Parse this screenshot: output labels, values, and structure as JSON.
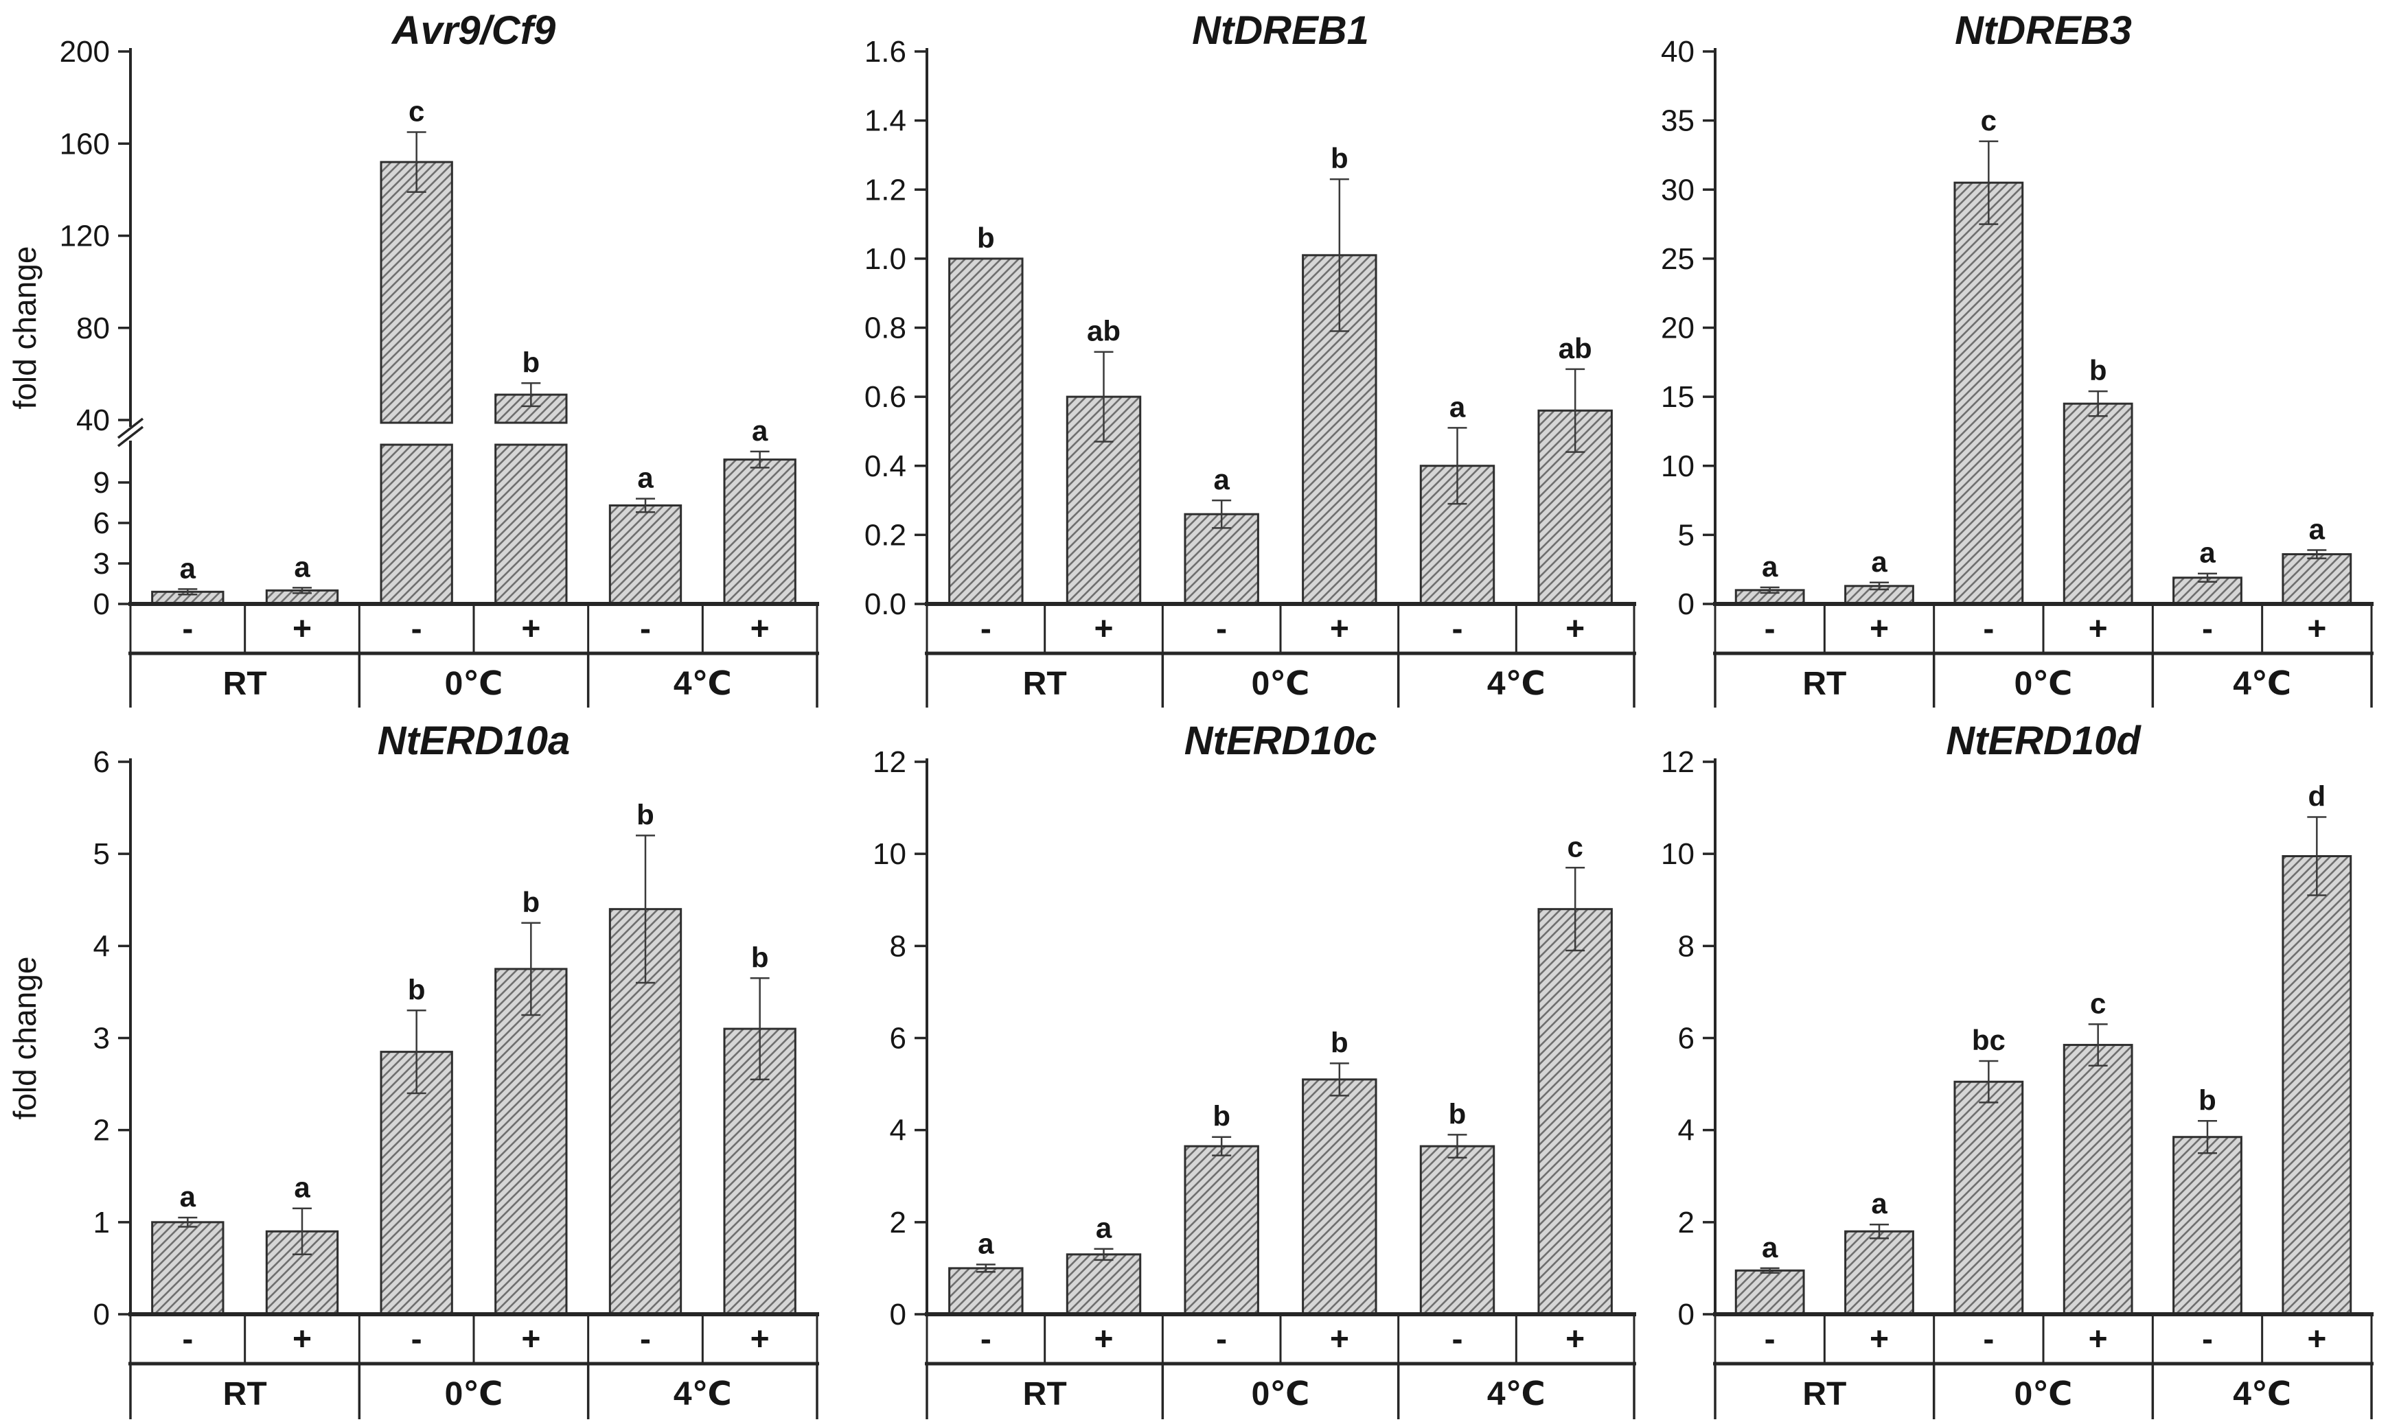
{
  "figure": {
    "background": "#ffffff",
    "bar_fill": "#d6d6d6",
    "bar_hatch_color": "#6f6f6f",
    "bar_border": "#2e2e2e",
    "axis_color": "#262626",
    "error_bar_color": "#3a3a3a",
    "text_color": "#161616"
  },
  "chart_data": [
    {
      "type": "bar",
      "title": "Avr9/Cf9",
      "ylabel": "fold change",
      "groups": [
        "RT",
        "0℃",
        "4℃"
      ],
      "conditions": [
        "-",
        "+"
      ],
      "categories": [
        "RT -",
        "RT +",
        "0℃ -",
        "0℃ +",
        "4℃ -",
        "4℃ +"
      ],
      "values": [
        0.9,
        1.0,
        152,
        51,
        7.3,
        10.7
      ],
      "errors": [
        0.2,
        0.2,
        13,
        5,
        0.5,
        0.6
      ],
      "sig_letters": [
        "a",
        "a",
        "c",
        "b",
        "a",
        "a"
      ],
      "broken_axis": true,
      "lower": {
        "max_visible": 11.8,
        "ticks": [
          0,
          3,
          6,
          9
        ],
        "tick_labels": [
          "0",
          "3",
          "6",
          "9"
        ]
      },
      "upper": {
        "min": 40,
        "max": 200,
        "ticks": [
          40,
          80,
          120,
          160,
          200
        ],
        "tick_labels": [
          "40",
          "80",
          "120",
          "160",
          "200"
        ]
      },
      "grid": "off",
      "legend": "none"
    },
    {
      "type": "bar",
      "title": "NtDREB1",
      "ylabel": "",
      "groups": [
        "RT",
        "0℃",
        "4℃"
      ],
      "conditions": [
        "-",
        "+"
      ],
      "categories": [
        "RT -",
        "RT +",
        "0℃ -",
        "0℃ +",
        "4℃ -",
        "4℃ +"
      ],
      "values": [
        1.0,
        0.6,
        0.26,
        1.01,
        0.4,
        0.56
      ],
      "errors": [
        0,
        0.13,
        0.04,
        0.22,
        0.11,
        0.12
      ],
      "sig_letters": [
        "b",
        "ab",
        "a",
        "b",
        "a",
        "ab"
      ],
      "broken_axis": false,
      "ymax": 1.6,
      "ticks": [
        0,
        0.2,
        0.4,
        0.6,
        0.8,
        1.0,
        1.2,
        1.4,
        1.6
      ],
      "tick_labels": [
        "0.0",
        "0.2",
        "0.4",
        "0.6",
        "0.8",
        "1.0",
        "1.2",
        "1.4",
        "1.6"
      ],
      "grid": "off",
      "legend": "none"
    },
    {
      "type": "bar",
      "title": "NtDREB3",
      "ylabel": "",
      "groups": [
        "RT",
        "0℃",
        "4℃"
      ],
      "conditions": [
        "-",
        "+"
      ],
      "categories": [
        "RT -",
        "RT +",
        "0℃ -",
        "0℃ +",
        "4℃ -",
        "4℃ +"
      ],
      "values": [
        1.0,
        1.3,
        30.5,
        14.5,
        1.9,
        3.6
      ],
      "errors": [
        0.2,
        0.25,
        3.0,
        0.9,
        0.3,
        0.3
      ],
      "sig_letters": [
        "a",
        "a",
        "c",
        "b",
        "a",
        "a"
      ],
      "broken_axis": false,
      "ymax": 40,
      "ticks": [
        0,
        5,
        10,
        15,
        20,
        25,
        30,
        35,
        40
      ],
      "tick_labels": [
        "0",
        "5",
        "10",
        "15",
        "20",
        "25",
        "30",
        "35",
        "40"
      ],
      "grid": "off",
      "legend": "none"
    },
    {
      "type": "bar",
      "title": "NtERD10a",
      "ylabel": "fold change",
      "groups": [
        "RT",
        "0℃",
        "4℃"
      ],
      "conditions": [
        "-",
        "+"
      ],
      "categories": [
        "RT -",
        "RT +",
        "0℃ -",
        "0℃ +",
        "4℃ -",
        "4℃ +"
      ],
      "values": [
        1.0,
        0.9,
        2.85,
        3.75,
        4.4,
        3.1
      ],
      "errors": [
        0.05,
        0.25,
        0.45,
        0.5,
        0.8,
        0.55
      ],
      "sig_letters": [
        "a",
        "a",
        "b",
        "b",
        "b",
        "b"
      ],
      "broken_axis": false,
      "ymax": 6,
      "ticks": [
        0,
        1,
        2,
        3,
        4,
        5,
        6
      ],
      "tick_labels": [
        "0",
        "1",
        "2",
        "3",
        "4",
        "5",
        "6"
      ],
      "grid": "off",
      "legend": "none"
    },
    {
      "type": "bar",
      "title": "NtERD10c",
      "ylabel": "",
      "groups": [
        "RT",
        "0℃",
        "4℃"
      ],
      "conditions": [
        "-",
        "+"
      ],
      "categories": [
        "RT -",
        "RT +",
        "0℃ -",
        "0℃ +",
        "4℃ -",
        "4℃ +"
      ],
      "values": [
        1.0,
        1.3,
        3.65,
        5.1,
        3.65,
        8.8
      ],
      "errors": [
        0.08,
        0.12,
        0.2,
        0.35,
        0.25,
        0.9
      ],
      "sig_letters": [
        "a",
        "a",
        "b",
        "b",
        "b",
        "c"
      ],
      "broken_axis": false,
      "ymax": 12,
      "ticks": [
        0,
        2,
        4,
        6,
        8,
        10,
        12
      ],
      "tick_labels": [
        "0",
        "2",
        "4",
        "6",
        "8",
        "10",
        "12"
      ],
      "grid": "off",
      "legend": "none"
    },
    {
      "type": "bar",
      "title": "NtERD10d",
      "ylabel": "",
      "groups": [
        "RT",
        "0℃",
        "4℃"
      ],
      "conditions": [
        "-",
        "+"
      ],
      "categories": [
        "RT -",
        "RT +",
        "0℃ -",
        "0℃ +",
        "4℃ -",
        "4℃ +"
      ],
      "values": [
        0.95,
        1.8,
        5.05,
        5.85,
        3.85,
        9.95
      ],
      "errors": [
        0.05,
        0.15,
        0.45,
        0.45,
        0.35,
        0.85
      ],
      "sig_letters": [
        "a",
        "a",
        "bc",
        "c",
        "b",
        "d"
      ],
      "broken_axis": false,
      "ymax": 12,
      "ticks": [
        0,
        2,
        4,
        6,
        8,
        10,
        12
      ],
      "tick_labels": [
        "0",
        "2",
        "4",
        "6",
        "8",
        "10",
        "12"
      ],
      "grid": "off",
      "legend": "none"
    }
  ]
}
